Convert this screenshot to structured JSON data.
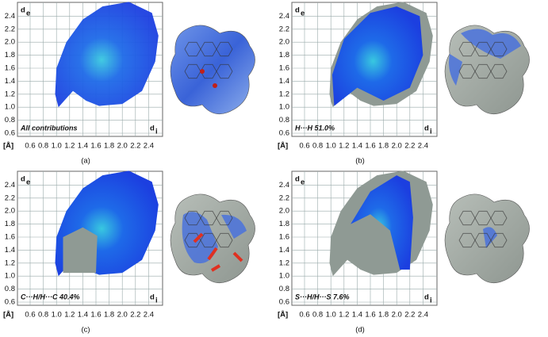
{
  "figure": {
    "axes": {
      "x_label": {
        "main": "d",
        "sub": "i"
      },
      "y_label": {
        "main": "d",
        "sub": "e"
      },
      "unit": "[Å]",
      "xticks": [
        0.6,
        0.8,
        {
          "value": 1,
          "label": "1.0"
        },
        1.2,
        1.4,
        1.6,
        1.8,
        {
          "value": 2,
          "label": "2.0"
        },
        2.2,
        2.4
      ],
      "yticks": [
        0.6,
        0.8,
        {
          "value": 1,
          "label": "1.0"
        },
        1.2,
        1.4,
        1.6,
        1.8,
        {
          "value": 2,
          "label": "2.0"
        },
        2.2,
        2.4
      ]
    },
    "panels": [
      {
        "caption": "(a)",
        "contribution": "All contributions"
      },
      {
        "caption": "(b)",
        "contribution": "H···H 51.0%"
      },
      {
        "caption": "(c)",
        "contribution": "C···H/H···C 40.4%"
      },
      {
        "caption": "(d)",
        "contribution": "S···H/H···S 7.6%"
      }
    ]
  }
}
